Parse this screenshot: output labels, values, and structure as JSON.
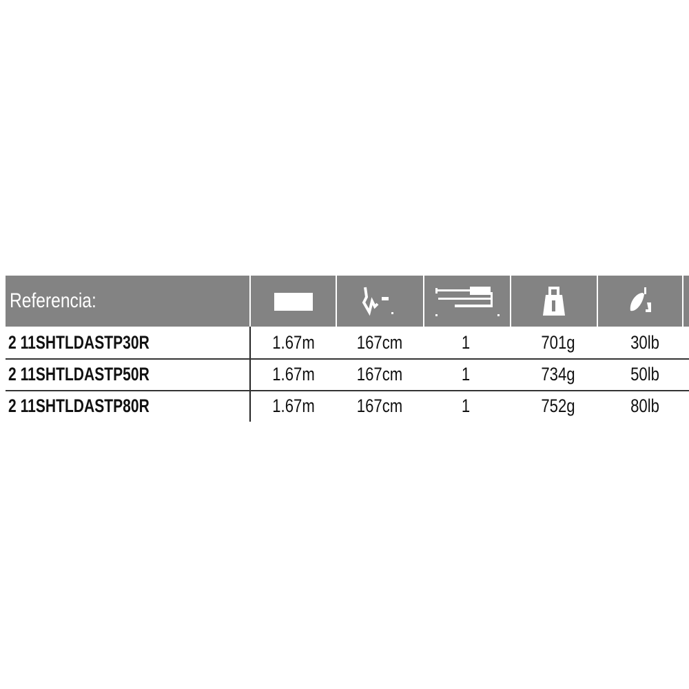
{
  "table": {
    "header": {
      "reference_label": "Referencia:",
      "columns": [
        {
          "icon": "length-rectangle-icon"
        },
        {
          "icon": "action-curve-icon"
        },
        {
          "icon": "sections-rod-icon"
        },
        {
          "icon": "weight-icon"
        },
        {
          "icon": "line-lure-icon"
        }
      ]
    },
    "rows": [
      {
        "ref": "2 11SHTLDASTP30R",
        "length_m": "1.67m",
        "length_cm": "167cm",
        "sections": "1",
        "weight": "701g",
        "line": "30lb"
      },
      {
        "ref": "2 11SHTLDASTP50R",
        "length_m": "1.67m",
        "length_cm": "167cm",
        "sections": "1",
        "weight": "734g",
        "line": "50lb"
      },
      {
        "ref": "2 11SHTLDASTP80R",
        "length_m": "1.67m",
        "length_cm": "167cm",
        "sections": "1",
        "weight": "752g",
        "line": "80lb"
      }
    ],
    "colors": {
      "header_bg": "#838383",
      "header_text": "#ffffff",
      "text": "#111111"
    }
  }
}
